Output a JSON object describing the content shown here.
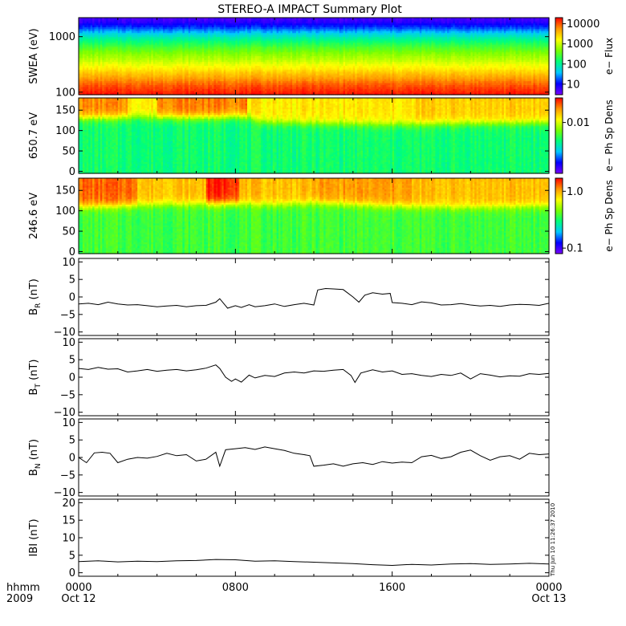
{
  "title": "STEREO-A IMPACT Summary Plot",
  "stamp": "Thu Jun 10 11:26:37 2010",
  "time_axis": {
    "row1_label": "hhmm",
    "row2_label": "2009",
    "ticks": [
      {
        "t": 0,
        "l1": "0000",
        "l2": "Oct 12"
      },
      {
        "t": 8,
        "l1": "0800",
        "l2": ""
      },
      {
        "t": 16,
        "l1": "1600",
        "l2": ""
      },
      {
        "t": 24,
        "l1": "0000",
        "l2": "Oct 13"
      }
    ],
    "range_hours": [
      0,
      24
    ]
  },
  "colors": {
    "spectrogram_scale": [
      "#7a00ff",
      "#0000ff",
      "#00c8ff",
      "#00ff7a",
      "#7aff00",
      "#ffff00",
      "#ff9600",
      "#ff0000"
    ],
    "line": "#000000"
  },
  "chart_data": [
    {
      "type": "heatmap",
      "ylabel": "SWEA (eV)",
      "yscale": "log",
      "ylim": [
        90,
        2200
      ],
      "yticks": [
        {
          "v": 100,
          "l": "100"
        },
        {
          "v": 1000,
          "l": "1000"
        }
      ],
      "colorbar": {
        "label": "e− Flux",
        "scale": "log",
        "range": [
          3,
          20000
        ],
        "ticks": [
          {
            "v": 10,
            "l": "10"
          },
          {
            "v": 100,
            "l": "100"
          },
          {
            "v": 1000,
            "l": "1000"
          },
          {
            "v": 10000,
            "l": "10000"
          }
        ]
      },
      "profile": [
        {
          "y": 90,
          "c": 0.98
        },
        {
          "y": 130,
          "c": 0.92
        },
        {
          "y": 180,
          "c": 0.84
        },
        {
          "y": 260,
          "c": 0.74
        },
        {
          "y": 380,
          "c": 0.64
        },
        {
          "y": 560,
          "c": 0.55
        },
        {
          "y": 800,
          "c": 0.44
        },
        {
          "y": 1100,
          "c": 0.32
        },
        {
          "y": 1400,
          "c": 0.2
        },
        {
          "y": 1800,
          "c": 0.1
        },
        {
          "y": 2200,
          "c": 0.05
        }
      ]
    },
    {
      "type": "heatmap",
      "ylabel": "650.7 eV",
      "ylim": [
        -5,
        180
      ],
      "yticks": [
        {
          "v": 0,
          "l": "0"
        },
        {
          "v": 50,
          "l": "50"
        },
        {
          "v": 100,
          "l": "100"
        },
        {
          "v": 150,
          "l": "150"
        }
      ],
      "colorbar": {
        "label": "e− Ph Sp Dens",
        "scale": "log",
        "range": [
          0.0015,
          0.025
        ],
        "ticks": [
          {
            "v": 0.01,
            "l": "0.01"
          }
        ]
      },
      "boundary": [
        {
          "t": 0,
          "y": 130
        },
        {
          "t": 3,
          "y": 133
        },
        {
          "t": 6.5,
          "y": 132
        },
        {
          "t": 8.5,
          "y": 135
        },
        {
          "t": 9.5,
          "y": 120
        },
        {
          "t": 12,
          "y": 118
        },
        {
          "t": 16,
          "y": 115
        },
        {
          "t": 20,
          "y": 118
        },
        {
          "t": 24,
          "y": 120
        }
      ],
      "low_c": 0.44,
      "high_c": 0.74,
      "hot": [
        {
          "t0": 0,
          "t1": 2.5,
          "c": 0.86
        },
        {
          "t0": 4,
          "t1": 8.6,
          "c": 0.88
        },
        {
          "t0": 17.2,
          "t1": 24,
          "c": 0.78
        }
      ]
    },
    {
      "type": "heatmap",
      "ylabel": "246.6 eV",
      "ylim": [
        -5,
        180
      ],
      "yticks": [
        {
          "v": 0,
          "l": "0"
        },
        {
          "v": 50,
          "l": "50"
        },
        {
          "v": 100,
          "l": "100"
        },
        {
          "v": 150,
          "l": "150"
        }
      ],
      "colorbar": {
        "label": "e− Ph Sp Dens",
        "scale": "log",
        "range": [
          0.08,
          1.7
        ],
        "ticks": [
          {
            "v": 0.1,
            "l": "0.1"
          },
          {
            "v": 1.0,
            "l": "1.0"
          }
        ]
      },
      "boundary": [
        {
          "t": 0,
          "y": 110
        },
        {
          "t": 2,
          "y": 112
        },
        {
          "t": 4,
          "y": 116
        },
        {
          "t": 8.5,
          "y": 118
        },
        {
          "t": 10,
          "y": 115
        },
        {
          "t": 12,
          "y": 120
        },
        {
          "t": 16,
          "y": 112
        },
        {
          "t": 20,
          "y": 108
        },
        {
          "t": 24,
          "y": 112
        }
      ],
      "low_c": 0.5,
      "high_c": 0.8,
      "hot": [
        {
          "t0": 0,
          "t1": 3,
          "c": 0.9
        },
        {
          "t0": 6.5,
          "t1": 8.2,
          "c": 0.97
        },
        {
          "t0": 12,
          "t1": 17,
          "c": 0.84
        }
      ]
    },
    {
      "type": "line",
      "ylabel": "B",
      "ysub": "R",
      "yunit": " (nT)",
      "ylim": [
        -11,
        11
      ],
      "yticks": [
        {
          "v": -10,
          "l": "−10"
        },
        {
          "v": -5,
          "l": "−5"
        },
        {
          "v": 0,
          "l": "0"
        },
        {
          "v": 5,
          "l": "5"
        },
        {
          "v": 10,
          "l": "10"
        }
      ],
      "x": [
        0,
        0.5,
        1,
        1.5,
        2,
        2.5,
        3,
        3.5,
        4,
        4.5,
        5,
        5.5,
        6,
        6.5,
        7,
        7.2,
        7.6,
        8,
        8.3,
        8.7,
        9,
        9.5,
        10,
        10.5,
        11,
        11.5,
        12,
        12.2,
        12.6,
        13,
        13.5,
        14,
        14.3,
        14.6,
        15,
        15.5,
        15.9,
        16,
        16.5,
        17,
        17.5,
        18,
        18.5,
        19,
        19.5,
        20,
        20.5,
        21,
        21.5,
        22,
        22.5,
        23,
        23.5,
        24
      ],
      "y": [
        -2,
        -1.8,
        -2.2,
        -1.5,
        -2,
        -2.3,
        -2.2,
        -2.5,
        -2.8,
        -2.6,
        -2.4,
        -2.8,
        -2.5,
        -2.4,
        -1.5,
        -0.5,
        -3.2,
        -2.5,
        -3,
        -2.2,
        -2.8,
        -2.5,
        -2,
        -2.7,
        -2.2,
        -1.8,
        -2.3,
        2,
        2.4,
        2.3,
        2.1,
        0,
        -1.5,
        0.5,
        1.2,
        0.8,
        1,
        -1.6,
        -1.8,
        -2.2,
        -1.4,
        -1.7,
        -2.3,
        -2.2,
        -1.9,
        -2.3,
        -2.6,
        -2.4,
        -2.7,
        -2.3,
        -2.1,
        -2.2,
        -2.4,
        -1.8
      ]
    },
    {
      "type": "line",
      "ylabel": "B",
      "ysub": "T",
      "yunit": " (nT)",
      "ylim": [
        -11,
        11
      ],
      "yticks": [
        {
          "v": -10,
          "l": "−10"
        },
        {
          "v": -5,
          "l": "−5"
        },
        {
          "v": 0,
          "l": "0"
        },
        {
          "v": 5,
          "l": "5"
        },
        {
          "v": 10,
          "l": "10"
        }
      ],
      "x": [
        0,
        0.5,
        1,
        1.5,
        2,
        2.5,
        3,
        3.5,
        4,
        4.5,
        5,
        5.5,
        6,
        6.5,
        7,
        7.2,
        7.5,
        7.8,
        8,
        8.3,
        8.7,
        9,
        9.5,
        10,
        10.5,
        11,
        11.5,
        12,
        12.5,
        13,
        13.5,
        13.9,
        14.1,
        14.4,
        15,
        15.5,
        16,
        16.5,
        17,
        17.5,
        18,
        18.5,
        19,
        19.5,
        20,
        20.5,
        21,
        21.5,
        22,
        22.5,
        23,
        23.5,
        24
      ],
      "y": [
        2.5,
        2.2,
        2.8,
        2.3,
        2.4,
        1.5,
        1.8,
        2.2,
        1.7,
        2,
        2.2,
        1.8,
        2.1,
        2.6,
        3.5,
        2.5,
        0,
        -1.2,
        -0.5,
        -1.4,
        0.6,
        -0.2,
        0.5,
        0.2,
        1.2,
        1.5,
        1.2,
        1.8,
        1.7,
        2,
        2.2,
        0.5,
        -1.5,
        1.2,
        2.1,
        1.5,
        1.8,
        0.8,
        1,
        0.5,
        0.2,
        0.8,
        0.5,
        1.2,
        -0.5,
        1,
        0.6,
        0.1,
        0.4,
        0.3,
        1,
        0.8,
        1.1
      ]
    },
    {
      "type": "line",
      "ylabel": "B",
      "ysub": "N",
      "yunit": " (nT)",
      "ylim": [
        -11,
        11
      ],
      "yticks": [
        {
          "v": -10,
          "l": "−10"
        },
        {
          "v": -5,
          "l": "−5"
        },
        {
          "v": 0,
          "l": "0"
        },
        {
          "v": 5,
          "l": "5"
        },
        {
          "v": 10,
          "l": "10"
        }
      ],
      "x": [
        0,
        0.4,
        0.8,
        1.2,
        1.6,
        2,
        2.5,
        3,
        3.5,
        4,
        4.5,
        5,
        5.5,
        6,
        6.5,
        7,
        7.2,
        7.5,
        8,
        8.5,
        9,
        9.5,
        10,
        10.5,
        11,
        11.5,
        11.8,
        12,
        12.5,
        13,
        13.5,
        14,
        14.5,
        15,
        15.5,
        16,
        16.5,
        17,
        17.5,
        18,
        18.5,
        19,
        19.5,
        20,
        20.5,
        21,
        21.5,
        22,
        22.5,
        23,
        23.5,
        24
      ],
      "y": [
        0,
        -1.5,
        1.3,
        1.5,
        1.2,
        -1.5,
        -0.5,
        0,
        -0.2,
        0.3,
        1.2,
        0.5,
        0.8,
        -1,
        -0.5,
        1.5,
        -2.5,
        2.2,
        2.5,
        2.8,
        2.3,
        3,
        2.5,
        2,
        1.2,
        0.8,
        0.5,
        -2.5,
        -2.2,
        -1.8,
        -2.5,
        -1.8,
        -1.5,
        -2,
        -1.2,
        -1.6,
        -1.3,
        -1.5,
        0.2,
        0.6,
        -0.3,
        0.2,
        1.5,
        2.1,
        0.5,
        -0.8,
        0.2,
        0.5,
        -0.5,
        1.2,
        0.8,
        1
      ]
    },
    {
      "type": "line",
      "ylabel": "IBI",
      "ysub": "",
      "yunit": " (nT)",
      "ylim": [
        -1,
        21
      ],
      "yticks": [
        {
          "v": 0,
          "l": "0"
        },
        {
          "v": 5,
          "l": "5"
        },
        {
          "v": 10,
          "l": "10"
        },
        {
          "v": 15,
          "l": "15"
        },
        {
          "v": 20,
          "l": "20"
        }
      ],
      "x": [
        0,
        1,
        2,
        3,
        4,
        5,
        6,
        7,
        8,
        9,
        10,
        11,
        12,
        13,
        14,
        15,
        16,
        17,
        18,
        19,
        20,
        21,
        22,
        23,
        24
      ],
      "y": [
        3.2,
        3.4,
        3.1,
        3.3,
        3.2,
        3.4,
        3.5,
        3.8,
        3.7,
        3.3,
        3.4,
        3.2,
        3,
        2.8,
        2.6,
        2.3,
        2.1,
        2.4,
        2.2,
        2.5,
        2.6,
        2.4,
        2.5,
        2.7,
        2.5
      ]
    }
  ]
}
